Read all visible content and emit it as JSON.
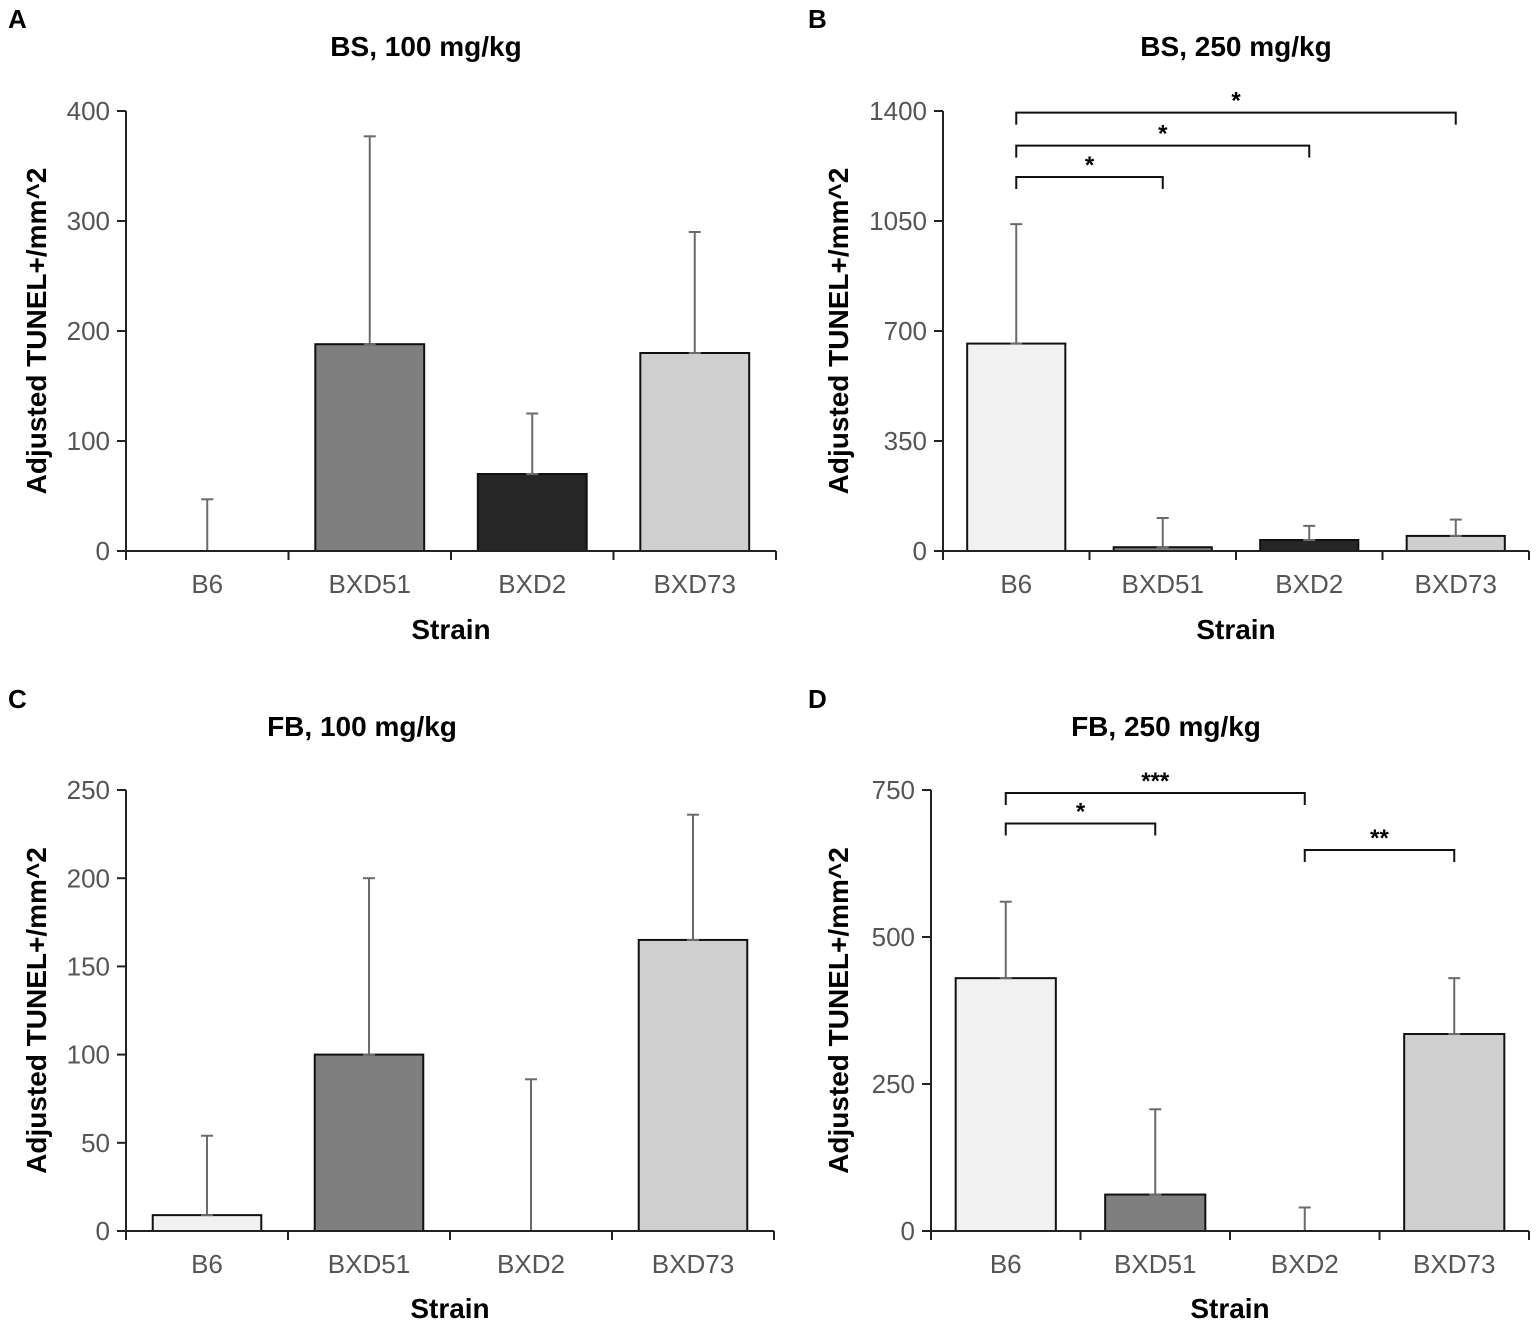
{
  "chart_data": [
    {
      "panel": "A",
      "type": "bar",
      "title": "BS, 100 mg/kg",
      "xlabel": "Strain",
      "ylabel": "Adjusted TUNEL+/mm^2",
      "categories": [
        "B6",
        "BXD51",
        "BXD2",
        "BXD73"
      ],
      "values": [
        0,
        188,
        70,
        180
      ],
      "error_upper": [
        47,
        377,
        125,
        290
      ],
      "ylim": [
        0,
        400
      ],
      "yticks": [
        0,
        100,
        200,
        300,
        400
      ],
      "colors": [
        "#f1f1f1",
        "#7f7f7f",
        "#262626",
        "#d0cfd0"
      ],
      "significance": []
    },
    {
      "panel": "B",
      "type": "bar",
      "title": "BS, 250 mg/kg",
      "xlabel": "Strain",
      "ylabel": "Adjusted TUNEL+/mm^2",
      "categories": [
        "B6",
        "BXD51",
        "BXD2",
        "BXD73"
      ],
      "values": [
        660,
        12,
        35,
        48
      ],
      "error_upper": [
        1040,
        105,
        80,
        100
      ],
      "ylim": [
        0,
        1400
      ],
      "yticks": [
        0,
        350,
        700,
        1050,
        1400
      ],
      "colors": [
        "#f1f1f1",
        "#7f7f7f",
        "#262626",
        "#d0cfd0"
      ],
      "significance": [
        {
          "from": 0,
          "to": 1,
          "label": "*",
          "level": 1190
        },
        {
          "from": 0,
          "to": 2,
          "label": "*",
          "level": 1290
        },
        {
          "from": 0,
          "to": 3,
          "label": "*",
          "level": 1395
        }
      ]
    },
    {
      "panel": "C",
      "type": "bar",
      "title": "FB, 100 mg/kg",
      "xlabel": "Strain",
      "ylabel": "Adjusted TUNEL+/mm^2",
      "categories": [
        "B6",
        "BXD51",
        "BXD2",
        "BXD73"
      ],
      "values": [
        9,
        100,
        0,
        165
      ],
      "error_upper": [
        54,
        200,
        86,
        236
      ],
      "ylim": [
        0,
        250
      ],
      "yticks": [
        0,
        50,
        100,
        150,
        200,
        250
      ],
      "colors": [
        "#f1f1f1",
        "#7f7f7f",
        "#262626",
        "#d0cfd0"
      ],
      "significance": []
    },
    {
      "panel": "D",
      "type": "bar",
      "title": "FB, 250 mg/kg",
      "xlabel": "Strain",
      "ylabel": "Adjusted TUNEL+/mm^2",
      "categories": [
        "B6",
        "BXD51",
        "BXD2",
        "BXD73"
      ],
      "values": [
        430,
        62,
        0,
        335
      ],
      "error_upper": [
        560,
        207,
        40,
        430
      ],
      "ylim": [
        0,
        750
      ],
      "yticks": [
        0,
        250,
        500,
        750
      ],
      "colors": [
        "#f1f1f1",
        "#7f7f7f",
        "#262626",
        "#d0cfd0"
      ],
      "significance": [
        {
          "from": 0,
          "to": 1,
          "label": "*",
          "level": 693
        },
        {
          "from": 0,
          "to": 2,
          "label": "***",
          "level": 745
        },
        {
          "from": 2,
          "to": 3,
          "label": "**",
          "level": 648
        }
      ]
    }
  ]
}
